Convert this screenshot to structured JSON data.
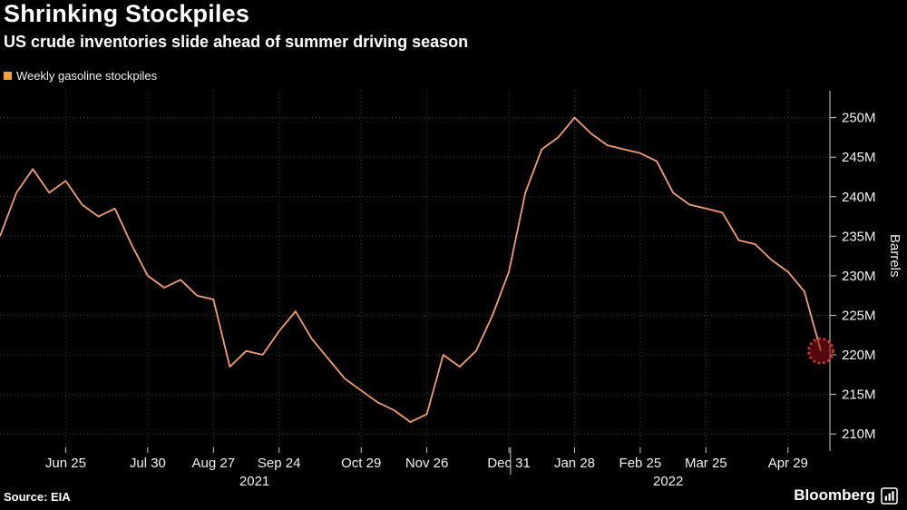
{
  "chart_data": {
    "type": "line",
    "title": "Shrinking Stockpiles",
    "subtitle": "US crude inventories slide ahead of summer driving season",
    "series_name": "Weekly gasoline stockpiles",
    "ylabel": "Barrels",
    "unit": "M",
    "ylim": [
      208.3,
      253.4
    ],
    "yticks": [
      250,
      245,
      240,
      235,
      230,
      225,
      220,
      215,
      210
    ],
    "x_ticks": [
      {
        "label": "Jun 25",
        "week": 4
      },
      {
        "label": "Jul 30",
        "week": 9
      },
      {
        "label": "Aug 27",
        "week": 13
      },
      {
        "label": "Sep 24",
        "week": 17
      },
      {
        "label": "Oct 29",
        "week": 22
      },
      {
        "label": "Nov 26",
        "week": 26
      },
      {
        "label": "Dec 31",
        "week": 31
      },
      {
        "label": "Jan 28",
        "week": 35
      },
      {
        "label": "Feb 25",
        "week": 39
      },
      {
        "label": "Mar 25",
        "week": 43
      },
      {
        "label": "Apr 29",
        "week": 48
      }
    ],
    "year_labels": [
      {
        "label": "2021",
        "week": 15.5
      },
      {
        "label": "2022",
        "week": 40.7
      }
    ],
    "year_divider_week": 31.1,
    "dates": [
      "2021-05-28",
      "2021-06-04",
      "2021-06-11",
      "2021-06-18",
      "2021-06-25",
      "2021-07-02",
      "2021-07-09",
      "2021-07-16",
      "2021-07-23",
      "2021-07-30",
      "2021-08-06",
      "2021-08-13",
      "2021-08-20",
      "2021-08-27",
      "2021-09-03",
      "2021-09-10",
      "2021-09-17",
      "2021-09-24",
      "2021-10-01",
      "2021-10-08",
      "2021-10-15",
      "2021-10-22",
      "2021-10-29",
      "2021-11-05",
      "2021-11-12",
      "2021-11-19",
      "2021-11-26",
      "2021-12-03",
      "2021-12-10",
      "2021-12-17",
      "2021-12-24",
      "2021-12-31",
      "2022-01-07",
      "2022-01-14",
      "2022-01-21",
      "2022-01-28",
      "2022-02-04",
      "2022-02-11",
      "2022-02-18",
      "2022-02-25",
      "2022-03-04",
      "2022-03-11",
      "2022-03-18",
      "2022-03-25",
      "2022-04-01",
      "2022-04-08",
      "2022-04-15",
      "2022-04-22",
      "2022-04-29",
      "2022-05-06",
      "2022-05-13"
    ],
    "values": [
      235.0,
      240.5,
      243.5,
      240.5,
      242.0,
      239.0,
      237.5,
      238.5,
      234.0,
      230.0,
      228.5,
      229.5,
      227.5,
      227.0,
      218.5,
      220.5,
      220.0,
      223.0,
      225.5,
      222.0,
      219.5,
      217.0,
      215.5,
      214.0,
      213.0,
      211.5,
      212.5,
      220.0,
      218.5,
      220.5,
      225.0,
      230.5,
      240.5,
      246.0,
      247.5,
      250.0,
      248.0,
      246.5,
      246.0,
      245.5,
      244.5,
      240.5,
      239.0,
      238.5,
      238.0,
      234.5,
      234.0,
      232.0,
      230.5,
      228.0,
      220.5
    ],
    "line_color": "#f49d6e",
    "legend_color": "#f7a238",
    "highlight_last": true,
    "highlight_stroke": "#e03a2f",
    "highlight_fill": "rgba(148,17,26,0.55)"
  },
  "footer": {
    "source": "Source: EIA",
    "brand": "Bloomberg"
  }
}
